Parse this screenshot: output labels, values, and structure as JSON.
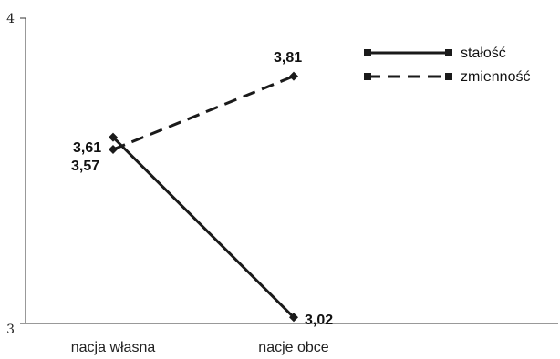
{
  "chart_data": {
    "type": "line",
    "categories": [
      "nacja własna",
      "nacje obce"
    ],
    "yticks": [
      "3",
      "4"
    ],
    "ylim": [
      3,
      4
    ],
    "series": [
      {
        "name": "stałość",
        "style": "solid",
        "values": [
          3.61,
          3.02
        ],
        "labels": [
          "3,61",
          "3,02"
        ]
      },
      {
        "name": "zmienność",
        "style": "dashed",
        "values": [
          3.57,
          3.81
        ],
        "labels": [
          "3,57",
          "3,81"
        ]
      }
    ],
    "legend_position": "top-right",
    "grid": false,
    "colors": {
      "line": "#1a1a1a",
      "axis": "#333333"
    }
  }
}
